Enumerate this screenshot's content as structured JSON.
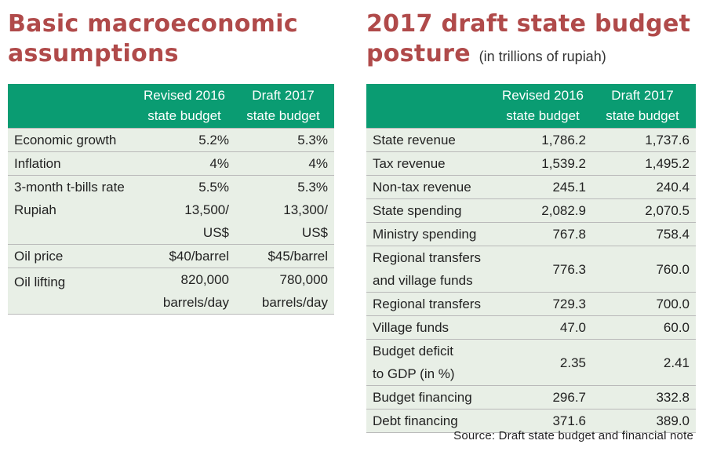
{
  "left": {
    "title_line1": "Basic macroeconomic",
    "title_line2": "assumptions",
    "headers": [
      "",
      "Revised 2016 state budget",
      "Draft 2017 state budget"
    ],
    "header_lines": [
      [
        "",
        ""
      ],
      [
        "Revised 2016",
        "state budget"
      ],
      [
        "Draft 2017",
        "state budget"
      ]
    ]
  },
  "right": {
    "title_line1": "2017 draft state budget",
    "title_line2": "posture",
    "subtitle": "(in trillions of rupiah)",
    "header_lines": [
      [
        "",
        ""
      ],
      [
        "Revised 2016",
        "state budget"
      ],
      [
        "Draft 2017",
        "state budget"
      ]
    ]
  },
  "source": "Source: Draft state budget and financial note",
  "colors": {
    "title": "#b04a4a",
    "header_bg": "#0a9c72",
    "row_bg": "#e8efe6"
  },
  "chart_data": [
    {
      "type": "table",
      "title": "Basic macroeconomic assumptions",
      "columns": [
        "",
        "Revised 2016 state budget",
        "Draft 2017 state budget"
      ],
      "rows": [
        {
          "label": "Economic growth",
          "rev2016": "5.2%",
          "draft2017": "5.3%"
        },
        {
          "label": "Inflation",
          "rev2016": "4%",
          "draft2017": "4%"
        },
        {
          "label": "3-month t-bills rate",
          "rev2016": "5.5%",
          "draft2017": "5.3%"
        },
        {
          "label": "Rupiah",
          "rev2016": [
            "13,500/",
            "US$"
          ],
          "draft2017": [
            "13,300/",
            "US$"
          ]
        },
        {
          "label": "Oil price",
          "rev2016": "$40/barrel",
          "draft2017": "$45/barrel"
        },
        {
          "label": "Oil lifting",
          "rev2016": [
            "820,000",
            "barrels/day"
          ],
          "draft2017": [
            "780,000",
            "barrels/day"
          ]
        }
      ]
    },
    {
      "type": "table",
      "title": "2017 draft state budget posture",
      "subtitle": "(in trillions of rupiah)",
      "columns": [
        "",
        "Revised 2016 state budget",
        "Draft 2017 state budget"
      ],
      "rows": [
        {
          "label": [
            "State revenue"
          ],
          "rev2016": "1,786.2",
          "draft2017": "1,737.6"
        },
        {
          "label": [
            "Tax revenue"
          ],
          "rev2016": "1,539.2",
          "draft2017": "1,495.2"
        },
        {
          "label": [
            "Non-tax revenue"
          ],
          "rev2016": "245.1",
          "draft2017": "240.4"
        },
        {
          "label": [
            "State spending"
          ],
          "rev2016": "2,082.9",
          "draft2017": "2,070.5"
        },
        {
          "label": [
            "Ministry spending"
          ],
          "rev2016": "767.8",
          "draft2017": "758.4"
        },
        {
          "label": [
            "Regional transfers",
            "and village funds"
          ],
          "rev2016": "776.3",
          "draft2017": "760.0"
        },
        {
          "label": [
            "Regional transfers"
          ],
          "rev2016": "729.3",
          "draft2017": "700.0"
        },
        {
          "label": [
            "Village funds"
          ],
          "rev2016": "47.0",
          "draft2017": "60.0"
        },
        {
          "label": [
            "Budget deficit",
            "to GDP (in %)"
          ],
          "rev2016": "2.35",
          "draft2017": "2.41"
        },
        {
          "label": [
            "Budget financing"
          ],
          "rev2016": "296.7",
          "draft2017": "332.8"
        },
        {
          "label": [
            "Debt financing"
          ],
          "rev2016": "371.6",
          "draft2017": "389.0"
        }
      ]
    }
  ]
}
